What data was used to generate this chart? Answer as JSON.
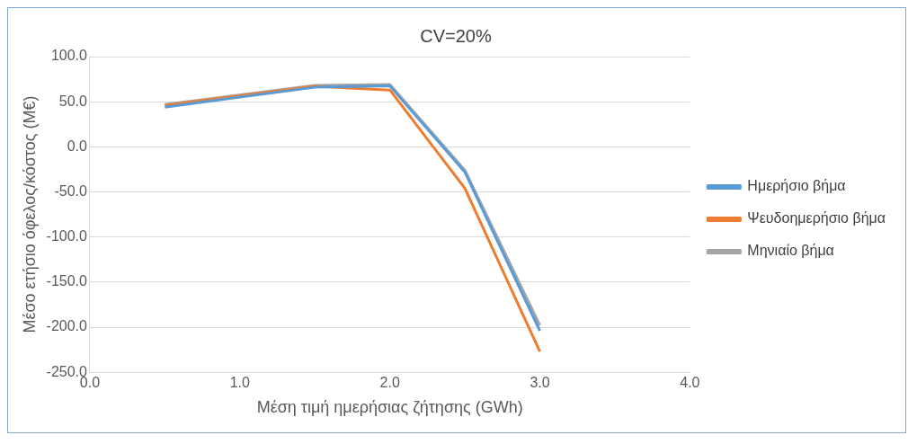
{
  "chart_data": {
    "type": "line",
    "title": "CV=20%",
    "xlabel": "Μέση τιμή ημερήσιας ζήτησης (GWh)",
    "ylabel": "Μέσο ετήσιο όφελος/κόστος (M€)",
    "x": [
      0.5,
      1.5,
      2.0,
      2.5,
      3.0
    ],
    "series": [
      {
        "name": "Ημερήσιο βήμα",
        "color": "#5b9bd5",
        "values": [
          44,
          66,
          67.5,
          -28,
          -204
        ]
      },
      {
        "name": "Ψευδοημερήσιο βήμα",
        "color": "#ed7d31",
        "values": [
          46,
          67,
          63,
          -46,
          -227
        ]
      },
      {
        "name": "Μηνιαίο βήμα",
        "color": "#a5a5a5",
        "values": [
          47,
          68,
          69,
          -26,
          -198
        ]
      }
    ],
    "xlim": [
      0,
      4
    ],
    "xticks": [
      {
        "value": 0,
        "label": "0.0"
      },
      {
        "value": 1,
        "label": "1.0"
      },
      {
        "value": 2,
        "label": "2.0"
      },
      {
        "value": 3,
        "label": "3.0"
      },
      {
        "value": 4,
        "label": "4.0"
      }
    ],
    "ylim": [
      -250,
      100
    ],
    "yticks": [
      {
        "value": -250,
        "label": "-250.0"
      },
      {
        "value": -200,
        "label": "-200.0"
      },
      {
        "value": -150,
        "label": "-150.0"
      },
      {
        "value": -100,
        "label": "-100.0"
      },
      {
        "value": -50,
        "label": "-50.0"
      },
      {
        "value": 0,
        "label": "0.0"
      },
      {
        "value": 50,
        "label": "50.0"
      },
      {
        "value": 100,
        "label": "100.0"
      }
    ],
    "grid": "y",
    "legend": "right",
    "marker": "none",
    "line_style": "solid"
  }
}
